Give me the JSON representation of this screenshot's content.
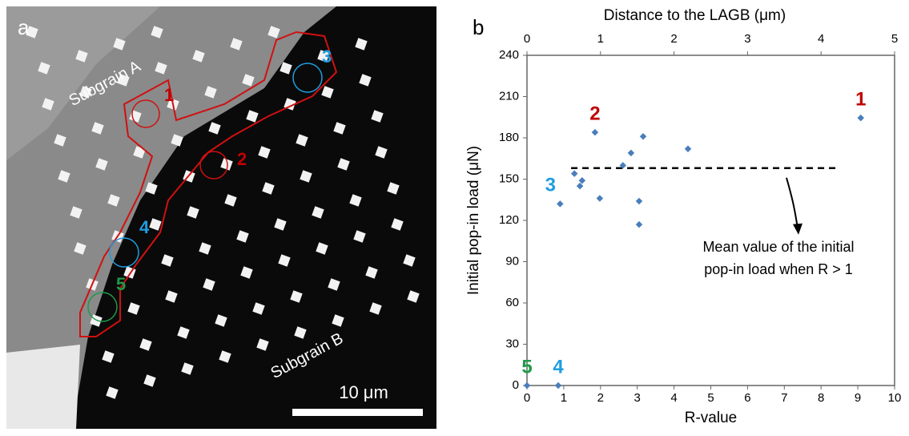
{
  "panel_a": {
    "letter": "a",
    "subgrain_a": "Subgrain A",
    "subgrain_b": "Subgrain B",
    "scale_bar": "10 μm",
    "site_labels": [
      {
        "text": "1",
        "color": "#c00000"
      },
      {
        "text": "2",
        "color": "#c00000"
      },
      {
        "text": "3",
        "color": "#1e9ee0"
      },
      {
        "text": "4",
        "color": "#1e9ee0"
      },
      {
        "text": "5",
        "color": "#1f9a4a"
      }
    ]
  },
  "chart_data": {
    "type": "scatter",
    "letter": "b",
    "x_label": "R-value",
    "y_label": "Initial pop-in load (μN)",
    "x2_label": "Distance to the LAGB (μm)",
    "x": [
      9.08,
      1.85,
      0.9,
      1.29,
      1.44,
      1.5,
      1.98,
      2.61,
      2.83,
      3.16,
      3.05,
      3.05,
      4.38,
      0,
      0.85
    ],
    "values": [
      194.5,
      184,
      132,
      154,
      145,
      149,
      136,
      160,
      169,
      181,
      134,
      117,
      172,
      0,
      0
    ],
    "point_labels": [
      {
        "text": "1",
        "color": "#c00000"
      },
      {
        "text": "2",
        "color": "#c00000"
      },
      {
        "text": "3",
        "color": "#1e9ee0"
      },
      null,
      null,
      null,
      null,
      null,
      null,
      null,
      null,
      null,
      null,
      {
        "text": "5",
        "color": "#1f9a4a"
      },
      {
        "text": "4",
        "color": "#1e9ee0"
      }
    ],
    "color": "#4a7ebb",
    "xlim": [
      0,
      10
    ],
    "xticks": [
      0,
      1,
      2,
      3,
      4,
      5,
      6,
      7,
      8,
      9,
      10
    ],
    "x2lim": [
      0,
      5
    ],
    "x2ticks": [
      0,
      1,
      2,
      3,
      4,
      5
    ],
    "ylim": [
      0,
      240
    ],
    "yticks": [
      0,
      30,
      60,
      90,
      120,
      150,
      180,
      210,
      240
    ],
    "grid": false,
    "mean_line": {
      "value": 158,
      "x": [
        1.2,
        8.4
      ]
    },
    "annotation": [
      "Mean value of the initial",
      "pop-in load when R > 1"
    ]
  }
}
